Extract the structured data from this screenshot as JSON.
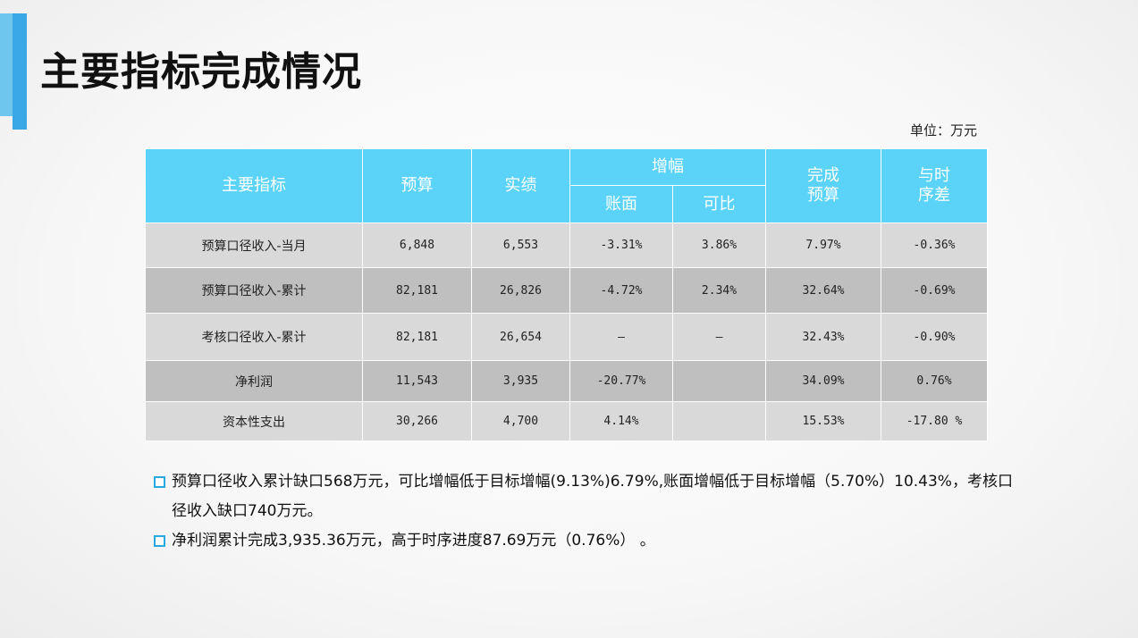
{
  "title": "主要指标完成情况",
  "unit": "单位：万元",
  "colors": {
    "header_bg": "#5bd3f9",
    "accent": "#3ba8e6",
    "row_light": "#d9d9d9",
    "row_dark": "#bfbfbf"
  },
  "table": {
    "headers": {
      "indicator": "主要指标",
      "budget": "预算",
      "actual": "实绩",
      "growth": "增幅",
      "growth_book": "账面",
      "growth_comparable": "可比",
      "completion": "完成\n预算",
      "time_gap": "与时\n序差"
    },
    "rows": [
      {
        "indicator": "预算口径收入-当月",
        "budget": "6,848",
        "actual": "6,553",
        "book": "-3.31%",
        "comparable": "3.86%",
        "completion": "7.97%",
        "time_gap": "-0.36%"
      },
      {
        "indicator": "预算口径收入-累计",
        "budget": "82,181",
        "actual": "26,826",
        "book": "-4.72%",
        "comparable": "2.34%",
        "completion": "32.64%",
        "time_gap": "-0.69%"
      },
      {
        "indicator": "考核口径收入-累计",
        "budget": "82,181",
        "actual": "26,654",
        "book": "—",
        "comparable": "—",
        "completion": "32.43%",
        "time_gap": "-0.90%"
      },
      {
        "indicator": "净利润",
        "budget": "11,543",
        "actual": "3,935",
        "book": "-20.77%",
        "comparable": "",
        "completion": "34.09%",
        "time_gap": "0.76%"
      },
      {
        "indicator": "资本性支出",
        "budget": "30,266",
        "actual": "4,700",
        "book": "4.14%",
        "comparable": "",
        "completion": "15.53%",
        "time_gap": "-17.80 %"
      }
    ]
  },
  "bullets": [
    {
      "icon": "square-bullet-icon",
      "text": "预算口径收入累计缺口568万元，可比增幅低于目标增幅(9.13%)6.79%,账面增幅低于目标增幅（5.70%）10.43%，考核口径收入缺口740万元。"
    },
    {
      "icon": "square-bullet-icon",
      "text": "净利润累计完成3,935.36万元，高于时序进度87.69万元（0.76%）  。"
    }
  ]
}
